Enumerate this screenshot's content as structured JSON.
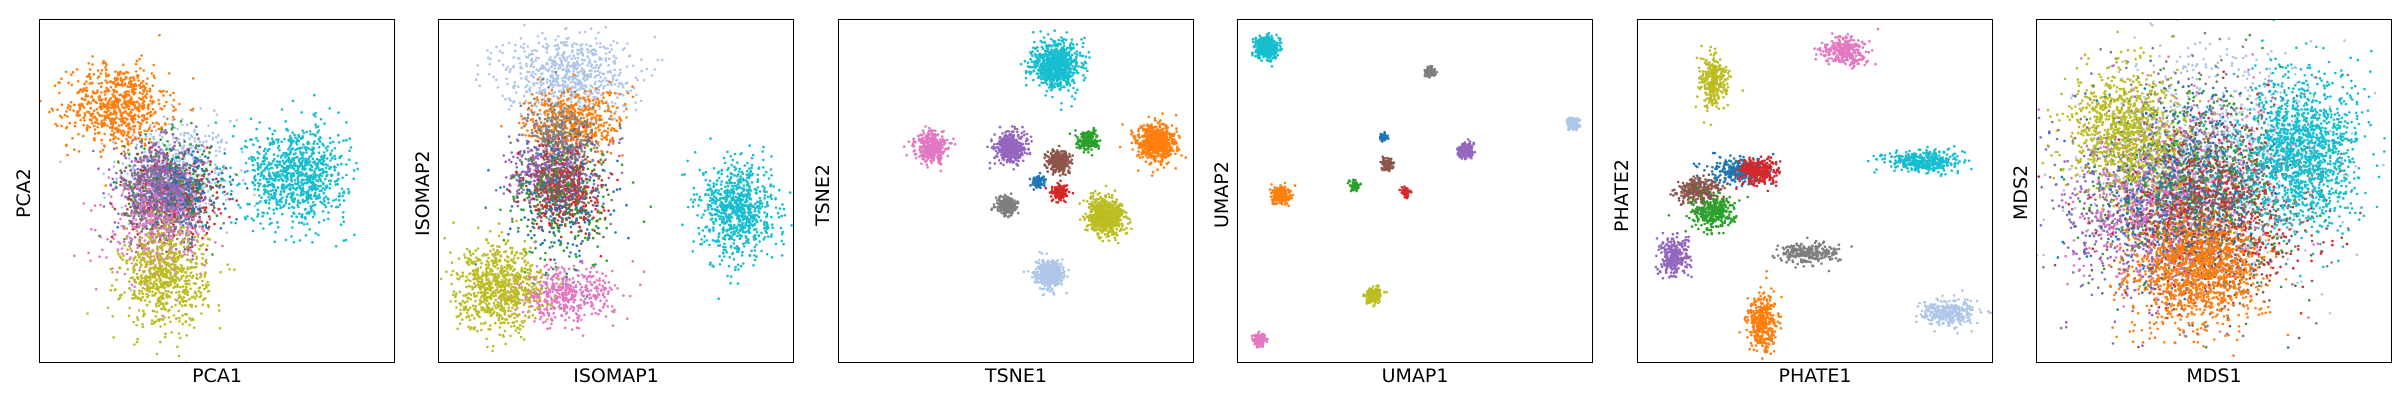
{
  "figure": {
    "palette": {
      "blue": "#1f77b4",
      "orange": "#ff7f0e",
      "green": "#2ca02c",
      "red": "#d62728",
      "purple": "#9467bd",
      "brown": "#8c564b",
      "pink": "#e377c2",
      "gray": "#7f7f7f",
      "olive": "#bcbd22",
      "cyan": "#17becf",
      "lightblue": "#aec7e8"
    }
  },
  "chart_data": [
    {
      "type": "scatter",
      "title": "",
      "xlabel": "PCA1",
      "ylabel": "PCA2",
      "xlim": [
        0,
        100
      ],
      "ylim": [
        0,
        100
      ],
      "ticks": "none",
      "clusters": [
        {
          "color": "lightblue",
          "cx": 38,
          "cy": 55,
          "sx": 8,
          "sy": 8,
          "n": 500
        },
        {
          "color": "orange",
          "cx": 22,
          "cy": 75,
          "sx": 7,
          "sy": 6,
          "n": 700
        },
        {
          "color": "green",
          "cx": 36,
          "cy": 52,
          "sx": 6,
          "sy": 7,
          "n": 300
        },
        {
          "color": "red",
          "cx": 38,
          "cy": 48,
          "sx": 6,
          "sy": 6,
          "n": 250
        },
        {
          "color": "brown",
          "cx": 35,
          "cy": 50,
          "sx": 6,
          "sy": 6,
          "n": 300
        },
        {
          "color": "gray",
          "cx": 36,
          "cy": 46,
          "sx": 6,
          "sy": 6,
          "n": 250
        },
        {
          "color": "blue",
          "cx": 40,
          "cy": 50,
          "sx": 6,
          "sy": 6,
          "n": 250
        },
        {
          "color": "purple",
          "cx": 33,
          "cy": 52,
          "sx": 6,
          "sy": 6,
          "n": 400
        },
        {
          "color": "pink",
          "cx": 33,
          "cy": 38,
          "sx": 7,
          "sy": 7,
          "n": 350
        },
        {
          "color": "olive",
          "cx": 35,
          "cy": 25,
          "sx": 6,
          "sy": 7,
          "n": 700
        },
        {
          "color": "cyan",
          "cx": 72,
          "cy": 55,
          "sx": 7,
          "sy": 7,
          "n": 900
        }
      ]
    },
    {
      "type": "scatter",
      "title": "",
      "xlabel": "ISOMAP1",
      "ylabel": "ISOMAP2",
      "xlim": [
        0,
        100
      ],
      "ylim": [
        0,
        100
      ],
      "ticks": "none",
      "clusters": [
        {
          "color": "lightblue",
          "cx": 36,
          "cy": 84,
          "sx": 9,
          "sy": 6,
          "n": 700
        },
        {
          "color": "orange",
          "cx": 38,
          "cy": 70,
          "sx": 7,
          "sy": 5,
          "n": 500
        },
        {
          "color": "gray",
          "cx": 35,
          "cy": 66,
          "sx": 5,
          "sy": 5,
          "n": 300
        },
        {
          "color": "purple",
          "cx": 32,
          "cy": 55,
          "sx": 6,
          "sy": 5,
          "n": 500
        },
        {
          "color": "red",
          "cx": 36,
          "cy": 50,
          "sx": 5,
          "sy": 6,
          "n": 300
        },
        {
          "color": "brown",
          "cx": 34,
          "cy": 52,
          "sx": 5,
          "sy": 6,
          "n": 300
        },
        {
          "color": "green",
          "cx": 35,
          "cy": 45,
          "sx": 8,
          "sy": 10,
          "n": 200
        },
        {
          "color": "blue",
          "cx": 35,
          "cy": 45,
          "sx": 8,
          "sy": 10,
          "n": 150
        },
        {
          "color": "pink",
          "cx": 35,
          "cy": 20,
          "sx": 7,
          "sy": 4,
          "n": 450
        },
        {
          "color": "olive",
          "cx": 17,
          "cy": 22,
          "sx": 6,
          "sy": 6,
          "n": 800
        },
        {
          "color": "cyan",
          "cx": 84,
          "cy": 45,
          "sx": 5,
          "sy": 7,
          "n": 800
        }
      ]
    },
    {
      "type": "scatter",
      "title": "",
      "xlabel": "TSNE1",
      "ylabel": "TSNE2",
      "xlim": [
        0,
        100
      ],
      "ylim": [
        0,
        100
      ],
      "ticks": "none",
      "clusters": [
        {
          "color": "cyan",
          "cx": 61,
          "cy": 87,
          "sx": 3.3,
          "sy": 3.3,
          "n": 800
        },
        {
          "color": "pink",
          "cx": 26,
          "cy": 63,
          "sx": 2.2,
          "sy": 2.2,
          "n": 350
        },
        {
          "color": "purple",
          "cx": 48,
          "cy": 63,
          "sx": 2.2,
          "sy": 2.2,
          "n": 400
        },
        {
          "color": "brown",
          "cx": 62,
          "cy": 59,
          "sx": 1.6,
          "sy": 1.6,
          "n": 300
        },
        {
          "color": "green",
          "cx": 70,
          "cy": 65,
          "sx": 1.4,
          "sy": 1.4,
          "n": 200
        },
        {
          "color": "orange",
          "cx": 89,
          "cy": 64,
          "sx": 2.7,
          "sy": 2.7,
          "n": 700
        },
        {
          "color": "blue",
          "cx": 56,
          "cy": 53,
          "sx": 0.9,
          "sy": 0.9,
          "n": 100
        },
        {
          "color": "red",
          "cx": 62,
          "cy": 50,
          "sx": 1.1,
          "sy": 1.1,
          "n": 150
        },
        {
          "color": "gray",
          "cx": 47,
          "cy": 46,
          "sx": 1.4,
          "sy": 1.4,
          "n": 250
        },
        {
          "color": "olive",
          "cx": 75,
          "cy": 43,
          "sx": 2.6,
          "sy": 2.6,
          "n": 700
        },
        {
          "color": "lightblue",
          "cx": 59,
          "cy": 26,
          "sx": 2.0,
          "sy": 2.0,
          "n": 400
        }
      ]
    },
    {
      "type": "scatter",
      "title": "",
      "xlabel": "UMAP1",
      "ylabel": "UMAP2",
      "xlim": [
        0,
        100
      ],
      "ylim": [
        0,
        100
      ],
      "ticks": "none",
      "clusters": [
        {
          "color": "cyan",
          "cx": 8,
          "cy": 92,
          "sx": 1.5,
          "sy": 1.5,
          "n": 500
        },
        {
          "color": "gray",
          "cx": 54,
          "cy": 85,
          "sx": 0.7,
          "sy": 0.7,
          "n": 100
        },
        {
          "color": "lightblue",
          "cx": 94,
          "cy": 70,
          "sx": 0.9,
          "sy": 0.9,
          "n": 150
        },
        {
          "color": "purple",
          "cx": 64,
          "cy": 62,
          "sx": 1.1,
          "sy": 1.1,
          "n": 200
        },
        {
          "color": "blue",
          "cx": 41,
          "cy": 66,
          "sx": 0.5,
          "sy": 0.5,
          "n": 60
        },
        {
          "color": "brown",
          "cx": 42,
          "cy": 58,
          "sx": 0.8,
          "sy": 0.8,
          "n": 120
        },
        {
          "color": "green",
          "cx": 33,
          "cy": 52,
          "sx": 0.7,
          "sy": 0.7,
          "n": 80
        },
        {
          "color": "red",
          "cx": 47,
          "cy": 50,
          "sx": 0.6,
          "sy": 0.6,
          "n": 80
        },
        {
          "color": "orange",
          "cx": 12,
          "cy": 49,
          "sx": 1.2,
          "sy": 1.2,
          "n": 250
        },
        {
          "color": "olive",
          "cx": 38,
          "cy": 20,
          "sx": 1.1,
          "sy": 1.1,
          "n": 200
        },
        {
          "color": "pink",
          "cx": 6,
          "cy": 7,
          "sx": 0.9,
          "sy": 0.9,
          "n": 150
        }
      ]
    },
    {
      "type": "scatter",
      "title": "",
      "xlabel": "PHATE1",
      "ylabel": "PHATE2",
      "xlim": [
        0,
        100
      ],
      "ylim": [
        0,
        100
      ],
      "ticks": "none",
      "clusters": [
        {
          "color": "pink",
          "cx": 58,
          "cy": 91,
          "sx": 3.0,
          "sy": 2.0,
          "n": 300
        },
        {
          "color": "olive",
          "cx": 21,
          "cy": 82,
          "sx": 2.0,
          "sy": 4.0,
          "n": 300
        },
        {
          "color": "cyan",
          "cx": 80,
          "cy": 59,
          "sx": 5.0,
          "sy": 1.5,
          "n": 400
        },
        {
          "color": "blue",
          "cx": 28,
          "cy": 56,
          "sx": 4.0,
          "sy": 2.0,
          "n": 300
        },
        {
          "color": "red",
          "cx": 34,
          "cy": 56,
          "sx": 3.0,
          "sy": 2.0,
          "n": 250
        },
        {
          "color": "brown",
          "cx": 17,
          "cy": 50,
          "sx": 3.0,
          "sy": 2.0,
          "n": 300
        },
        {
          "color": "green",
          "cx": 21,
          "cy": 44,
          "sx": 3.0,
          "sy": 2.5,
          "n": 300
        },
        {
          "color": "gray",
          "cx": 48,
          "cy": 32,
          "sx": 4.0,
          "sy": 1.5,
          "n": 250
        },
        {
          "color": "purple",
          "cx": 10,
          "cy": 31,
          "sx": 2.0,
          "sy": 3.0,
          "n": 300
        },
        {
          "color": "orange",
          "cx": 35,
          "cy": 12,
          "sx": 2.0,
          "sy": 4.0,
          "n": 350
        },
        {
          "color": "lightblue",
          "cx": 87,
          "cy": 15,
          "sx": 4.0,
          "sy": 2.0,
          "n": 300
        }
      ]
    },
    {
      "type": "scatter",
      "title": "",
      "xlabel": "MDS1",
      "ylabel": "MDS2",
      "xlim": [
        0,
        100
      ],
      "ylim": [
        0,
        100
      ],
      "ticks": "none",
      "clusters": [
        {
          "color": "lightblue",
          "cx": 50,
          "cy": 60,
          "sx": 16,
          "sy": 16,
          "n": 900
        },
        {
          "color": "gray",
          "cx": 45,
          "cy": 55,
          "sx": 15,
          "sy": 15,
          "n": 700
        },
        {
          "color": "purple",
          "cx": 32,
          "cy": 45,
          "sx": 12,
          "sy": 13,
          "n": 900
        },
        {
          "color": "pink",
          "cx": 38,
          "cy": 48,
          "sx": 14,
          "sy": 14,
          "n": 700
        },
        {
          "color": "green",
          "cx": 45,
          "cy": 50,
          "sx": 13,
          "sy": 13,
          "n": 600
        },
        {
          "color": "red",
          "cx": 50,
          "cy": 45,
          "sx": 12,
          "sy": 13,
          "n": 600
        },
        {
          "color": "brown",
          "cx": 50,
          "cy": 40,
          "sx": 12,
          "sy": 12,
          "n": 500
        },
        {
          "color": "blue",
          "cx": 42,
          "cy": 50,
          "sx": 14,
          "sy": 14,
          "n": 500
        },
        {
          "color": "olive",
          "cx": 25,
          "cy": 68,
          "sx": 8,
          "sy": 9,
          "n": 900
        },
        {
          "color": "orange",
          "cx": 45,
          "cy": 27,
          "sx": 9,
          "sy": 8,
          "n": 1200
        },
        {
          "color": "cyan",
          "cx": 75,
          "cy": 62,
          "sx": 8,
          "sy": 11,
          "n": 1400
        }
      ]
    }
  ]
}
